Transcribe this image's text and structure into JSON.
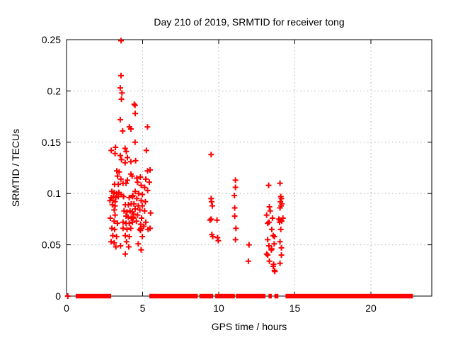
{
  "chart_data": {
    "type": "scatter",
    "title": "Day 210 of 2019, SRMTID for receiver tong",
    "xlabel": "GPS time / hours",
    "ylabel": "SRMTID / TECUs",
    "xlim": [
      0,
      24
    ],
    "ylim": [
      0,
      0.25
    ],
    "x_ticks": [
      0,
      5,
      10,
      15,
      20
    ],
    "x_tick_labels": [
      "0",
      "5",
      "10",
      "15",
      "20"
    ],
    "y_ticks": [
      0,
      0.05,
      0.1,
      0.15,
      0.2,
      0.25
    ],
    "y_tick_labels": [
      "0",
      "0.05",
      "0.1",
      "0.15",
      "0.2",
      "0.25"
    ],
    "grid": true,
    "legend_position": "none",
    "marker": "plus",
    "marker_color": "#ff0000",
    "series": [
      {
        "name": "SRMTID",
        "points": [
          [
            3.58,
            0.249
          ],
          [
            3.58,
            0.215
          ],
          [
            3.53,
            0.203
          ],
          [
            3.64,
            0.198
          ],
          [
            3.61,
            0.192
          ],
          [
            4.45,
            0.187
          ],
          [
            4.5,
            0.186
          ],
          [
            4.51,
            0.178
          ],
          [
            3.53,
            0.172
          ],
          [
            4.13,
            0.165
          ],
          [
            3.69,
            0.161
          ],
          [
            4.23,
            0.163
          ],
          [
            5.32,
            0.165
          ],
          [
            4.5,
            0.15
          ],
          [
            2.94,
            0.142
          ],
          [
            3.22,
            0.145
          ],
          [
            3.19,
            0.139
          ],
          [
            3.53,
            0.137
          ],
          [
            3.85,
            0.144
          ],
          [
            3.92,
            0.141
          ],
          [
            5.24,
            0.142
          ],
          [
            3.61,
            0.133
          ],
          [
            4.0,
            0.135
          ],
          [
            4.23,
            0.131
          ],
          [
            3.85,
            0.13
          ],
          [
            4.54,
            0.132
          ],
          [
            3.3,
            0.122
          ],
          [
            3.46,
            0.121
          ],
          [
            3.35,
            0.117
          ],
          [
            3.57,
            0.114
          ],
          [
            4.23,
            0.119
          ],
          [
            4.31,
            0.117
          ],
          [
            4.0,
            0.113
          ],
          [
            4.62,
            0.115
          ],
          [
            4.85,
            0.116
          ],
          [
            5.21,
            0.114
          ],
          [
            5.32,
            0.122
          ],
          [
            5.49,
            0.123
          ],
          [
            4.67,
            0.111
          ],
          [
            5.44,
            0.111
          ],
          [
            4.9,
            0.108
          ],
          [
            5.13,
            0.106
          ],
          [
            3.16,
            0.109
          ],
          [
            3.4,
            0.109
          ],
          [
            3.71,
            0.11
          ],
          [
            3.91,
            0.11
          ],
          [
            2.98,
            0.102
          ],
          [
            3.13,
            0.101
          ],
          [
            3.29,
            0.1
          ],
          [
            3.44,
            0.101
          ],
          [
            3.6,
            0.099
          ],
          [
            3.08,
            0.097
          ],
          [
            2.93,
            0.096
          ],
          [
            3.24,
            0.096
          ],
          [
            3.4,
            0.097
          ],
          [
            3.75,
            0.097
          ],
          [
            4.12,
            0.096
          ],
          [
            4.33,
            0.097
          ],
          [
            5.33,
            0.103
          ],
          [
            4.51,
            0.102
          ],
          [
            4.74,
            0.1
          ],
          [
            4.98,
            0.099
          ],
          [
            4.36,
            0.098
          ],
          [
            2.85,
            0.093
          ],
          [
            3.04,
            0.093
          ],
          [
            3.19,
            0.092
          ],
          [
            3.01,
            0.089
          ],
          [
            3.19,
            0.088
          ],
          [
            3.86,
            0.089
          ],
          [
            4.06,
            0.089
          ],
          [
            4.25,
            0.09
          ],
          [
            4.62,
            0.095
          ],
          [
            4.9,
            0.093
          ],
          [
            5.18,
            0.092
          ],
          [
            4.43,
            0.09
          ],
          [
            4.71,
            0.088
          ],
          [
            4.98,
            0.088
          ],
          [
            3.13,
            0.084
          ],
          [
            3.78,
            0.083
          ],
          [
            3.97,
            0.082
          ],
          [
            4.17,
            0.083
          ],
          [
            4.33,
            0.082
          ],
          [
            4.51,
            0.085
          ],
          [
            4.82,
            0.084
          ],
          [
            5.13,
            0.083
          ],
          [
            3.19,
            0.079
          ],
          [
            2.88,
            0.076
          ],
          [
            3.91,
            0.078
          ],
          [
            4.06,
            0.077
          ],
          [
            4.25,
            0.076
          ],
          [
            4.4,
            0.077
          ],
          [
            4.4,
            0.08
          ],
          [
            4.67,
            0.079
          ],
          [
            4.36,
            0.076
          ],
          [
            4.93,
            0.076
          ],
          [
            5.52,
            0.081
          ],
          [
            3.13,
            0.073
          ],
          [
            3.35,
            0.071
          ],
          [
            3.71,
            0.072
          ],
          [
            3.91,
            0.071
          ],
          [
            4.12,
            0.071
          ],
          [
            4.33,
            0.072
          ],
          [
            4.59,
            0.073
          ],
          [
            5.21,
            0.072
          ],
          [
            4.87,
            0.07
          ],
          [
            2.98,
            0.066
          ],
          [
            3.16,
            0.065
          ],
          [
            3.71,
            0.066
          ],
          [
            3.97,
            0.065
          ],
          [
            4.22,
            0.066
          ],
          [
            5.08,
            0.068
          ],
          [
            4.82,
            0.065
          ],
          [
            4.86,
            0.064
          ],
          [
            4.89,
            0.066
          ],
          [
            5.36,
            0.065
          ],
          [
            5.49,
            0.066
          ],
          [
            3.04,
            0.059
          ],
          [
            3.29,
            0.058
          ],
          [
            3.86,
            0.059
          ],
          [
            4.12,
            0.058
          ],
          [
            4.98,
            0.058
          ],
          [
            2.93,
            0.053
          ],
          [
            3.13,
            0.052
          ],
          [
            3.94,
            0.053
          ],
          [
            4.71,
            0.051
          ],
          [
            3.24,
            0.048
          ],
          [
            3.55,
            0.049
          ],
          [
            4.09,
            0.048
          ],
          [
            4.9,
            0.045
          ],
          [
            3.86,
            0.041
          ],
          [
            9.5,
            0.138
          ],
          [
            11.1,
            0.113
          ],
          [
            11.1,
            0.106
          ],
          [
            11.03,
            0.098
          ],
          [
            9.5,
            0.095
          ],
          [
            9.53,
            0.092
          ],
          [
            9.58,
            0.088
          ],
          [
            11.05,
            0.086
          ],
          [
            9.5,
            0.075
          ],
          [
            9.43,
            0.074
          ],
          [
            9.89,
            0.074
          ],
          [
            11.05,
            0.078
          ],
          [
            11.13,
            0.066
          ],
          [
            9.55,
            0.06
          ],
          [
            9.61,
            0.058
          ],
          [
            9.92,
            0.057
          ],
          [
            9.97,
            0.054
          ],
          [
            11.1,
            0.055
          ],
          [
            11.99,
            0.05
          ],
          [
            11.95,
            0.034
          ],
          [
            13.28,
            0.108
          ],
          [
            14.03,
            0.11
          ],
          [
            14.08,
            0.097
          ],
          [
            14.12,
            0.095
          ],
          [
            14.05,
            0.092
          ],
          [
            13.33,
            0.087
          ],
          [
            14.15,
            0.09
          ],
          [
            14.1,
            0.088
          ],
          [
            14.03,
            0.086
          ],
          [
            13.38,
            0.083
          ],
          [
            13.15,
            0.079
          ],
          [
            13.53,
            0.076
          ],
          [
            13.95,
            0.075
          ],
          [
            14.05,
            0.074
          ],
          [
            14.15,
            0.073
          ],
          [
            14.22,
            0.076
          ],
          [
            14.0,
            0.072
          ],
          [
            13.3,
            0.072
          ],
          [
            13.22,
            0.071
          ],
          [
            14.08,
            0.065
          ],
          [
            13.49,
            0.065
          ],
          [
            13.58,
            0.059
          ],
          [
            13.66,
            0.058
          ],
          [
            13.22,
            0.055
          ],
          [
            13.3,
            0.049
          ],
          [
            13.64,
            0.051
          ],
          [
            14.03,
            0.053
          ],
          [
            13.49,
            0.046
          ],
          [
            14.12,
            0.047
          ],
          [
            13.45,
            0.045
          ],
          [
            13.15,
            0.041
          ],
          [
            13.22,
            0.04
          ],
          [
            14.12,
            0.04
          ],
          [
            13.33,
            0.034
          ],
          [
            13.61,
            0.031
          ],
          [
            14.03,
            0.032
          ],
          [
            13.58,
            0.029
          ],
          [
            13.69,
            0.024
          ],
          [
            13.66,
            0.025
          ],
          [
            0.09,
            0.0
          ]
        ]
      }
    ],
    "zero_band_segments": [
      [
        0.6,
        2.93
      ],
      [
        5.44,
        8.62
      ],
      [
        8.73,
        9.63
      ],
      [
        9.77,
        11.06
      ],
      [
        11.13,
        13.07
      ],
      [
        13.27,
        13.49
      ],
      [
        13.66,
        13.92
      ],
      [
        14.39,
        22.76
      ]
    ],
    "colors": {
      "marker": "#ff0000",
      "grid": "#b3b3b3",
      "border": "#000000",
      "background": "#ffffff"
    }
  }
}
